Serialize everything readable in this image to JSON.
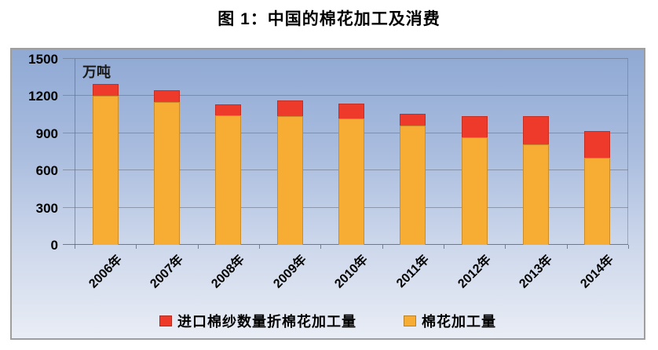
{
  "title": "图 1：中国的棉花加工及消费",
  "chart_data": {
    "type": "bar",
    "stacked": true,
    "title": "图 1：中国的棉花加工及消费",
    "unit_label": "万吨",
    "xlabel": "",
    "ylabel": "万吨",
    "categories": [
      "2006年",
      "2007年",
      "2008年",
      "2009年",
      "2010年",
      "2011年",
      "2012年",
      "2013年",
      "2014年"
    ],
    "series": [
      {
        "name": "棉花加工量",
        "color": "#f7ac34",
        "values": [
          1200,
          1155,
          1045,
          1040,
          1020,
          960,
          870,
          810,
          705
        ]
      },
      {
        "name": "进口棉纱数量折棉花加工量",
        "color": "#ee3a2b",
        "values": [
          100,
          95,
          90,
          125,
          120,
          95,
          170,
          225,
          215
        ]
      }
    ],
    "totals": [
      1300,
      1250,
      1135,
      1165,
      1140,
      1055,
      1040,
      1035,
      920
    ],
    "ylim": [
      0,
      1500
    ],
    "yticks": [
      0,
      300,
      600,
      900,
      1200,
      1500
    ],
    "grid": true,
    "legend_position": "bottom",
    "legend": [
      {
        "label": "进口棉纱数量折棉花加工量",
        "color": "#ee3a2b"
      },
      {
        "label": "棉花加工量",
        "color": "#f7ac34"
      }
    ],
    "plot_background_top": "#8fa9d4",
    "plot_background_bottom": "#e9edf5"
  }
}
